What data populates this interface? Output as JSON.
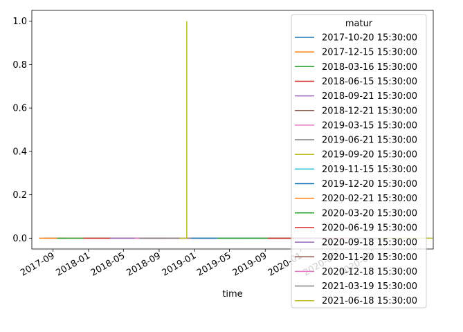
{
  "chart_data": {
    "type": "line",
    "xlabel": "time",
    "ylabel": "",
    "title": "",
    "legend_title": "matur",
    "legend_position": "right",
    "x_range": [
      "2017-06-20",
      "2021-04-01"
    ],
    "ylim": [
      -0.05,
      1.05
    ],
    "x_ticks": [
      "2017-09",
      "2018-01",
      "2018-05",
      "2018-09",
      "2019-01",
      "2019-05",
      "2019-09",
      "2020-01",
      "2020-05",
      "2020-09"
    ],
    "y_ticks": [
      "0.0",
      "0.2",
      "0.4",
      "0.6",
      "0.8",
      "1.0"
    ],
    "grid": false,
    "series": [
      {
        "name": "2017-10-20 15:30:00",
        "color": "#1f77b4",
        "x": [
          "2017-08-05",
          "2017-10-20"
        ],
        "values": [
          0.0,
          0.0
        ]
      },
      {
        "name": "2017-12-15 15:30:00",
        "color": "#ff7f0e",
        "x": [
          "2017-07-15",
          "2017-12-15"
        ],
        "values": [
          0.0,
          0.0
        ]
      },
      {
        "name": "2018-03-16 15:30:00",
        "color": "#2ca02c",
        "x": [
          "2017-09-15",
          "2018-03-16"
        ],
        "values": [
          0.0,
          0.0
        ]
      },
      {
        "name": "2018-06-15 15:30:00",
        "color": "#d62728",
        "x": [
          "2017-12-15",
          "2018-06-15"
        ],
        "values": [
          0.0,
          0.0
        ]
      },
      {
        "name": "2018-09-21 15:30:00",
        "color": "#9467bd",
        "x": [
          "2018-03-16",
          "2018-09-21"
        ],
        "values": [
          0.0,
          0.0
        ]
      },
      {
        "name": "2018-12-21 15:30:00",
        "color": "#8c564b",
        "x": [
          "2018-06-15",
          "2018-12-21"
        ],
        "values": [
          0.0,
          0.0
        ]
      },
      {
        "name": "2019-03-15 15:30:00",
        "color": "#e377c2",
        "x": [
          "2018-06-10",
          "2019-03-15"
        ],
        "values": [
          0.0,
          0.0
        ]
      },
      {
        "name": "2019-06-21 15:30:00",
        "color": "#7f7f7f",
        "x": [
          "2018-06-25",
          "2019-06-21"
        ],
        "values": [
          0.0,
          0.0
        ]
      },
      {
        "name": "2019-09-20 15:30:00",
        "color": "#bcbd22",
        "x": [
          "2018-11-10",
          "2018-12-05",
          "2018-12-05",
          "2018-12-05",
          "2018-12-06"
        ],
        "values": [
          0.0,
          0.0,
          1.0,
          0.0,
          0.0
        ]
      },
      {
        "name": "2019-11-15 15:30:00",
        "color": "#17becf",
        "x": [
          "2019-01-10",
          "2019-11-15"
        ],
        "values": [
          0.0,
          0.0
        ]
      },
      {
        "name": "2019-12-20 15:30:00",
        "color": "#1f77b4",
        "x": [
          "2018-12-20",
          "2019-12-20"
        ],
        "values": [
          0.0,
          0.0
        ]
      },
      {
        "name": "2020-02-21 15:30:00",
        "color": "#ff7f0e",
        "x": [
          "2019-08-20",
          "2020-02-21"
        ],
        "values": [
          0.0,
          0.0
        ]
      },
      {
        "name": "2020-03-20 15:30:00",
        "color": "#2ca02c",
        "x": [
          "2019-03-20",
          "2020-03-20"
        ],
        "values": [
          0.0,
          0.0
        ]
      },
      {
        "name": "2020-06-19 15:30:00",
        "color": "#d62728",
        "x": [
          "2019-09-10",
          "2020-06-19"
        ],
        "values": [
          0.0,
          0.0
        ]
      },
      {
        "name": "2020-09-18 15:30:00",
        "color": "#9467bd",
        "x": [
          "2019-12-10",
          "2020-09-18"
        ],
        "values": [
          0.0,
          0.0
        ]
      },
      {
        "name": "2020-11-20 15:30:00",
        "color": "#8c564b",
        "x": [
          "2020-03-10",
          "2020-11-20"
        ],
        "values": [
          0.0,
          0.0
        ]
      },
      {
        "name": "2020-12-18 15:30:00",
        "color": "#e377c2",
        "x": [
          "2020-03-20",
          "2020-12-18"
        ],
        "values": [
          0.0,
          0.0
        ]
      },
      {
        "name": "2021-03-19 15:30:00",
        "color": "#7f7f7f",
        "x": [
          "2020-06-20",
          "2021-03-19"
        ],
        "values": [
          0.0,
          0.0
        ]
      },
      {
        "name": "2021-06-18 15:30:00",
        "color": "#bcbd22",
        "x": [
          "2020-09-20",
          "2021-03-30"
        ],
        "values": [
          0.0,
          0.0
        ]
      }
    ]
  }
}
